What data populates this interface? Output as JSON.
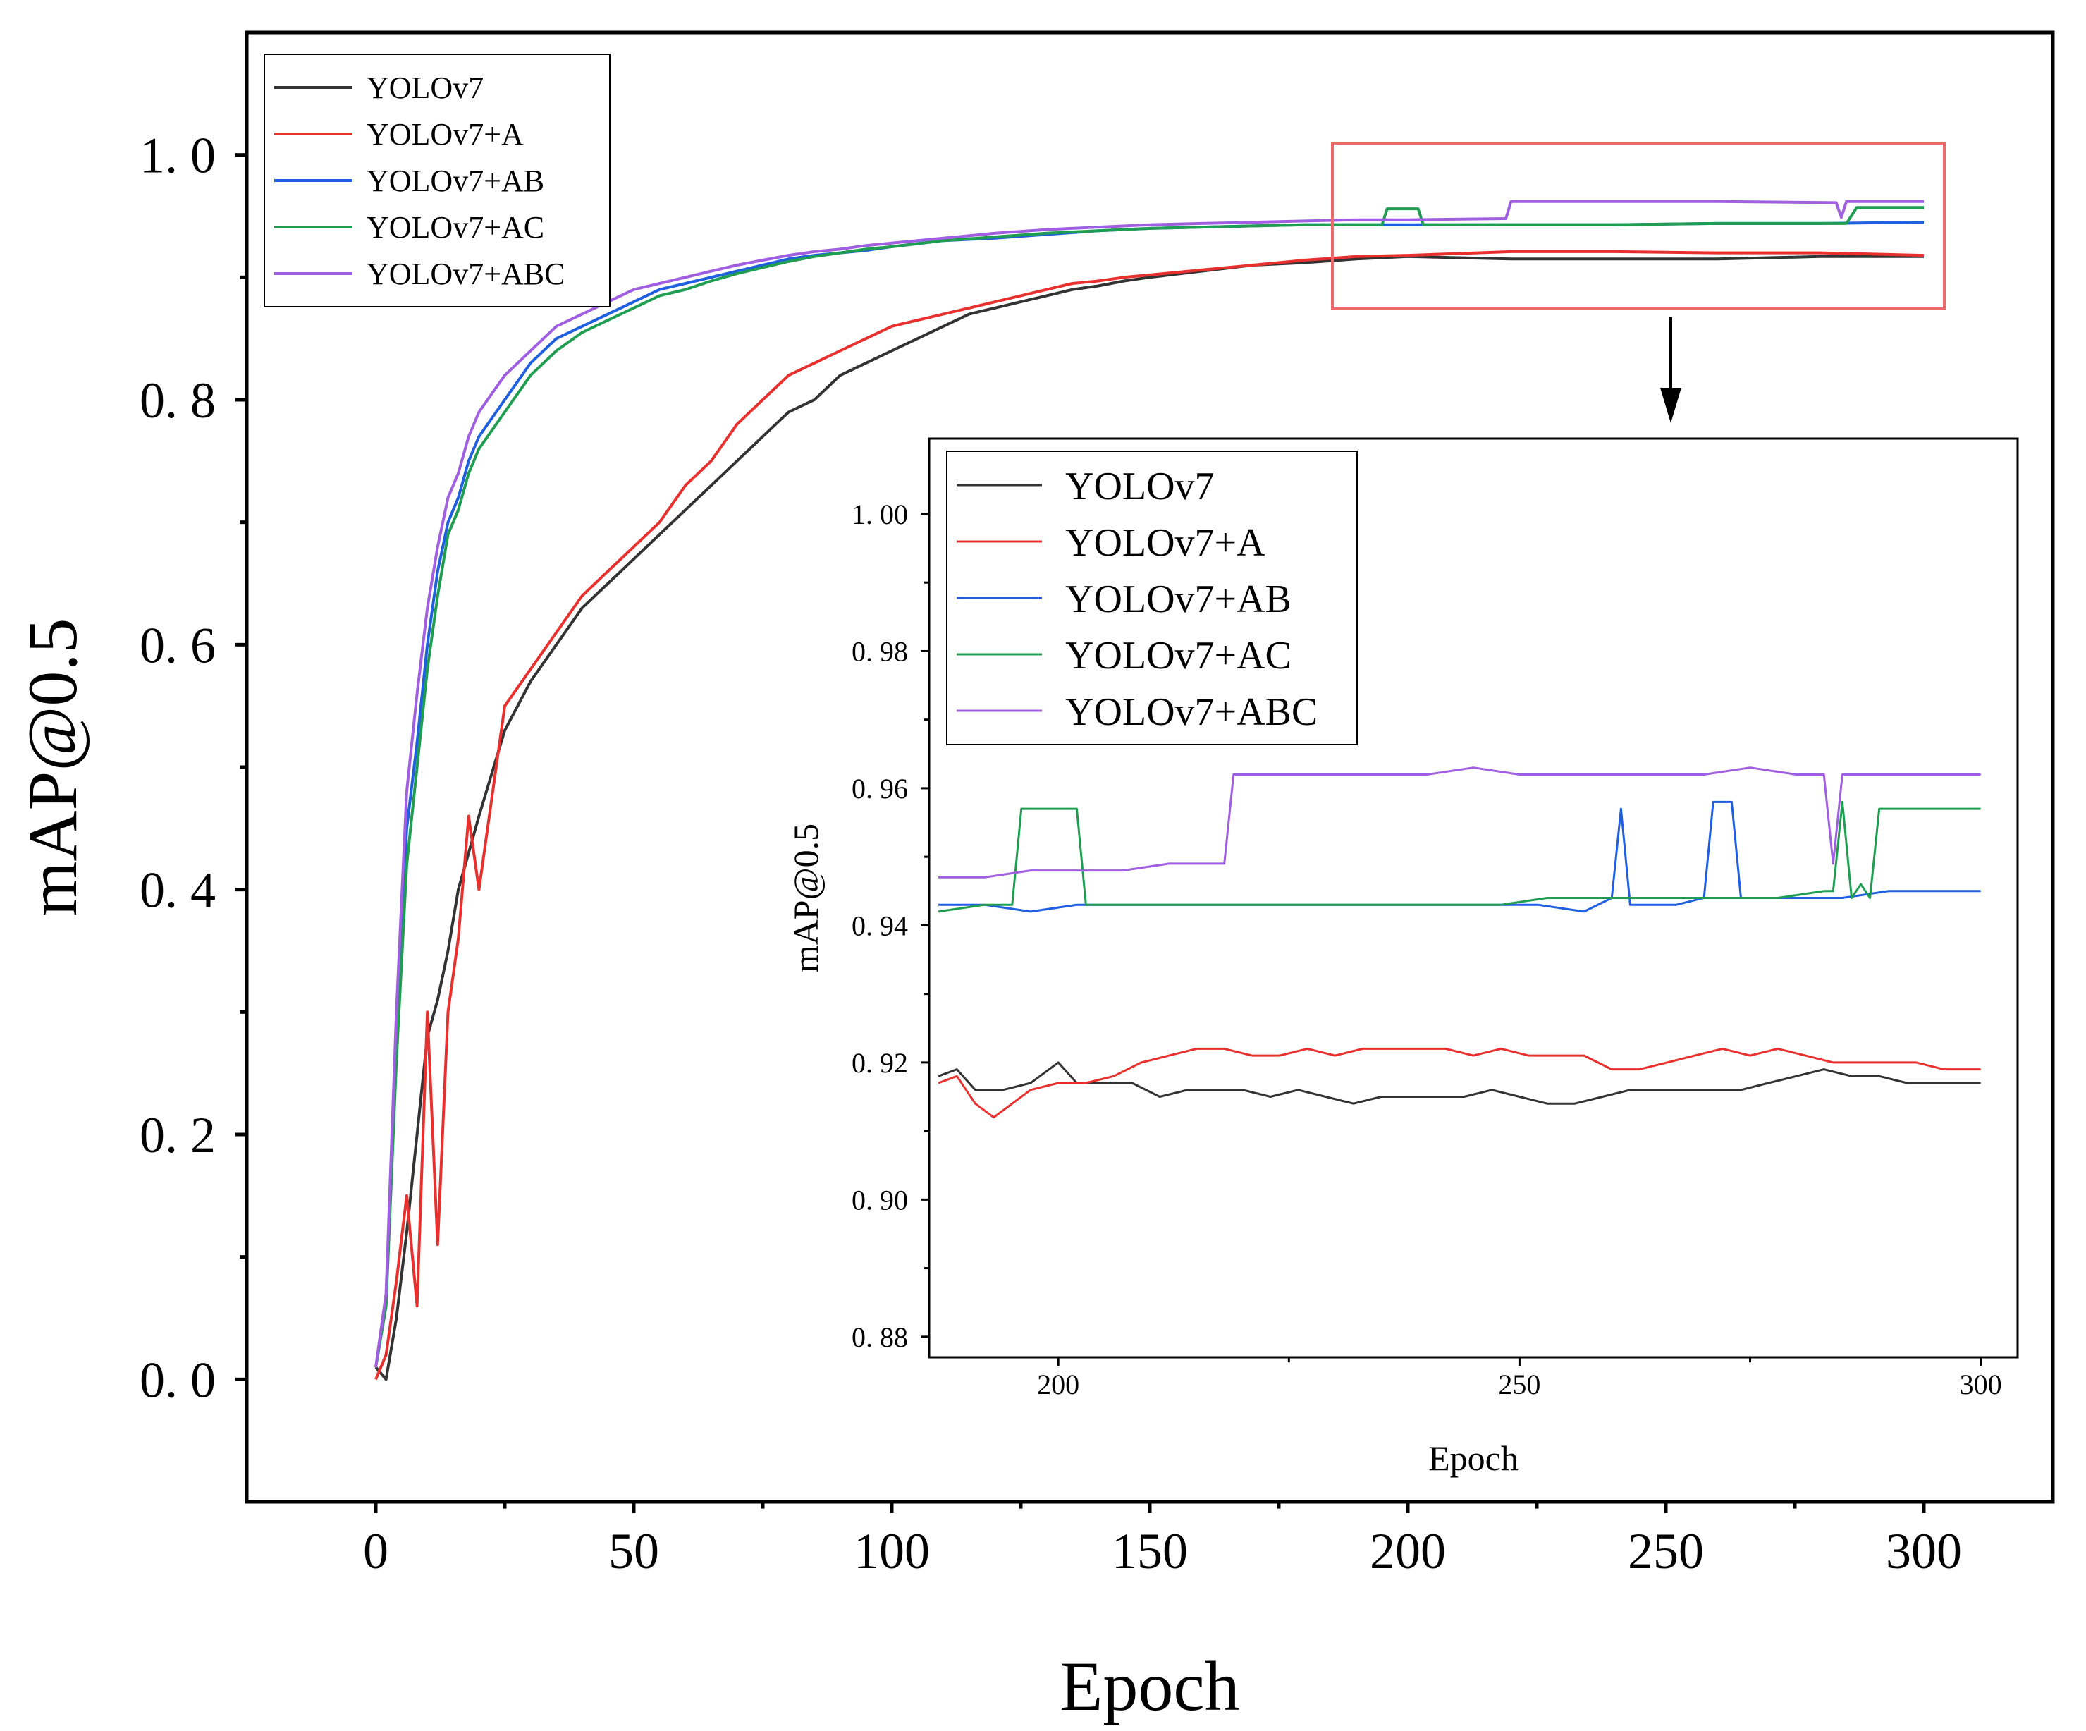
{
  "colors": {
    "YOLOv7": "#333333",
    "YOLOv7+A": "#e8312f",
    "YOLOv7+AB": "#1f5fe0",
    "YOLOv7+AC": "#1f9e52",
    "YOLOv7+ABC": "#a05fe0",
    "highlight": "#ee6a6a"
  },
  "chart_data": [
    {
      "type": "line",
      "id": "main",
      "title": "",
      "xlabel": "Epoch",
      "ylabel": "mAP@0.5",
      "xlim": [
        -25,
        325
      ],
      "ylim": [
        -0.1,
        1.1
      ],
      "xticks": [
        0,
        50,
        100,
        150,
        200,
        250,
        300
      ],
      "xtick_labels": [
        "0",
        "50",
        "100",
        "150",
        "200",
        "250",
        "300"
      ],
      "yticks": [
        0.0,
        0.2,
        0.4,
        0.6,
        0.8,
        1.0
      ],
      "ytick_labels": [
        "0. 0",
        "0. 2",
        "0. 4",
        "0. 6",
        "0. 8",
        "1. 0"
      ],
      "legend_position": "top-left",
      "series": [
        {
          "name": "YOLOv7",
          "x": [
            0,
            2,
            4,
            6,
            8,
            10,
            12,
            14,
            16,
            18,
            20,
            25,
            30,
            35,
            40,
            45,
            50,
            55,
            60,
            65,
            70,
            75,
            80,
            85,
            90,
            95,
            100,
            105,
            110,
            115,
            120,
            125,
            130,
            135,
            140,
            145,
            150,
            160,
            170,
            180,
            190,
            200,
            220,
            240,
            260,
            280,
            300
          ],
          "y": [
            0.01,
            0.0,
            0.05,
            0.12,
            0.2,
            0.28,
            0.31,
            0.35,
            0.4,
            0.43,
            0.46,
            0.53,
            0.57,
            0.6,
            0.63,
            0.65,
            0.67,
            0.69,
            0.71,
            0.73,
            0.75,
            0.77,
            0.79,
            0.8,
            0.82,
            0.83,
            0.84,
            0.85,
            0.86,
            0.87,
            0.875,
            0.88,
            0.885,
            0.89,
            0.893,
            0.897,
            0.9,
            0.905,
            0.91,
            0.912,
            0.915,
            0.917,
            0.915,
            0.915,
            0.915,
            0.917,
            0.917
          ]
        },
        {
          "name": "YOLOv7+A",
          "x": [
            0,
            2,
            4,
            6,
            8,
            10,
            12,
            14,
            16,
            18,
            20,
            25,
            30,
            35,
            40,
            45,
            50,
            55,
            60,
            65,
            70,
            75,
            80,
            85,
            90,
            95,
            100,
            105,
            110,
            115,
            120,
            125,
            130,
            135,
            140,
            145,
            150,
            160,
            170,
            180,
            190,
            200,
            220,
            240,
            260,
            280,
            300
          ],
          "y": [
            0.0,
            0.02,
            0.08,
            0.15,
            0.06,
            0.3,
            0.11,
            0.3,
            0.36,
            0.46,
            0.4,
            0.55,
            0.58,
            0.61,
            0.64,
            0.66,
            0.68,
            0.7,
            0.73,
            0.75,
            0.78,
            0.8,
            0.82,
            0.83,
            0.84,
            0.85,
            0.86,
            0.865,
            0.87,
            0.875,
            0.88,
            0.885,
            0.89,
            0.895,
            0.897,
            0.9,
            0.902,
            0.906,
            0.91,
            0.914,
            0.917,
            0.918,
            0.921,
            0.921,
            0.92,
            0.92,
            0.918
          ]
        },
        {
          "name": "YOLOv7+AB",
          "x": [
            0,
            2,
            4,
            6,
            8,
            10,
            12,
            14,
            16,
            18,
            20,
            25,
            30,
            35,
            40,
            45,
            50,
            55,
            60,
            65,
            70,
            75,
            80,
            85,
            90,
            95,
            100,
            110,
            120,
            130,
            140,
            150,
            160,
            170,
            180,
            190,
            200,
            220,
            240,
            260,
            280,
            300
          ],
          "y": [
            0.01,
            0.06,
            0.28,
            0.45,
            0.52,
            0.6,
            0.66,
            0.7,
            0.72,
            0.75,
            0.77,
            0.8,
            0.83,
            0.85,
            0.86,
            0.87,
            0.88,
            0.89,
            0.895,
            0.9,
            0.905,
            0.91,
            0.915,
            0.918,
            0.92,
            0.922,
            0.925,
            0.93,
            0.932,
            0.935,
            0.938,
            0.94,
            0.941,
            0.942,
            0.943,
            0.943,
            0.943,
            0.943,
            0.943,
            0.944,
            0.944,
            0.945
          ]
        },
        {
          "name": "YOLOv7+AC",
          "x": [
            0,
            2,
            4,
            6,
            8,
            10,
            12,
            14,
            16,
            18,
            20,
            25,
            30,
            35,
            40,
            45,
            50,
            55,
            60,
            65,
            70,
            75,
            80,
            85,
            90,
            95,
            100,
            110,
            120,
            130,
            140,
            150,
            160,
            170,
            180,
            190,
            195,
            196,
            202,
            203,
            220,
            240,
            260,
            285,
            287,
            300
          ],
          "y": [
            0.01,
            0.06,
            0.26,
            0.42,
            0.5,
            0.58,
            0.64,
            0.69,
            0.71,
            0.74,
            0.76,
            0.79,
            0.82,
            0.84,
            0.855,
            0.865,
            0.875,
            0.885,
            0.89,
            0.897,
            0.903,
            0.908,
            0.913,
            0.917,
            0.92,
            0.923,
            0.925,
            0.93,
            0.933,
            0.936,
            0.938,
            0.94,
            0.941,
            0.942,
            0.943,
            0.943,
            0.943,
            0.956,
            0.956,
            0.943,
            0.943,
            0.943,
            0.944,
            0.944,
            0.957,
            0.957
          ]
        },
        {
          "name": "YOLOv7+ABC",
          "x": [
            0,
            2,
            4,
            6,
            8,
            10,
            12,
            14,
            16,
            18,
            20,
            25,
            30,
            35,
            40,
            45,
            50,
            55,
            60,
            65,
            70,
            75,
            80,
            85,
            90,
            95,
            100,
            110,
            120,
            130,
            140,
            150,
            160,
            170,
            180,
            190,
            200,
            219,
            220,
            240,
            260,
            283,
            284,
            285,
            300
          ],
          "y": [
            0.01,
            0.07,
            0.3,
            0.48,
            0.56,
            0.63,
            0.68,
            0.72,
            0.74,
            0.77,
            0.79,
            0.82,
            0.84,
            0.86,
            0.87,
            0.88,
            0.89,
            0.895,
            0.9,
            0.905,
            0.91,
            0.914,
            0.918,
            0.921,
            0.923,
            0.926,
            0.928,
            0.932,
            0.936,
            0.939,
            0.941,
            0.943,
            0.944,
            0.945,
            0.946,
            0.947,
            0.947,
            0.948,
            0.962,
            0.962,
            0.962,
            0.961,
            0.949,
            0.962,
            0.962
          ]
        }
      ],
      "annotation": "highlight box around epochs ~187–300, mAP ~0.875–1.01 with arrow pointing to inset"
    },
    {
      "type": "line",
      "id": "inset",
      "title": "",
      "xlabel": "Epoch",
      "ylabel": "mAP@0.5",
      "xlim": [
        186,
        304
      ],
      "ylim": [
        0.877,
        1.011
      ],
      "xticks": [
        200,
        250,
        300
      ],
      "xtick_labels": [
        "200",
        "250",
        "300"
      ],
      "yticks": [
        0.88,
        0.9,
        0.92,
        0.94,
        0.96,
        0.98,
        1.0
      ],
      "ytick_labels": [
        "0. 88",
        "0. 90",
        "0. 92",
        "0. 94",
        "0. 96",
        "0. 98",
        "1. 00"
      ],
      "legend_position": "top-left",
      "series": [
        {
          "name": "YOLOv7",
          "x": [
            187,
            189,
            191,
            194,
            197,
            200,
            202,
            205,
            208,
            211,
            214,
            217,
            220,
            223,
            226,
            229,
            232,
            235,
            238,
            241,
            244,
            247,
            250,
            253,
            256,
            259,
            262,
            265,
            268,
            271,
            274,
            277,
            280,
            283,
            286,
            289,
            292,
            295,
            300
          ],
          "y": [
            0.918,
            0.919,
            0.916,
            0.916,
            0.917,
            0.92,
            0.917,
            0.917,
            0.917,
            0.915,
            0.916,
            0.916,
            0.916,
            0.915,
            0.916,
            0.915,
            0.914,
            0.915,
            0.915,
            0.915,
            0.915,
            0.916,
            0.915,
            0.914,
            0.914,
            0.915,
            0.916,
            0.916,
            0.916,
            0.916,
            0.916,
            0.917,
            0.918,
            0.919,
            0.918,
            0.918,
            0.917,
            0.917,
            0.917
          ]
        },
        {
          "name": "YOLOv7+A",
          "x": [
            187,
            189,
            191,
            193,
            195,
            197,
            200,
            203,
            206,
            209,
            212,
            215,
            218,
            221,
            224,
            227,
            230,
            233,
            236,
            239,
            242,
            245,
            248,
            251,
            254,
            257,
            260,
            263,
            266,
            269,
            272,
            275,
            278,
            281,
            284,
            287,
            290,
            293,
            296,
            300
          ],
          "y": [
            0.917,
            0.918,
            0.914,
            0.912,
            0.914,
            0.916,
            0.917,
            0.917,
            0.918,
            0.92,
            0.921,
            0.922,
            0.922,
            0.921,
            0.921,
            0.922,
            0.921,
            0.922,
            0.922,
            0.922,
            0.922,
            0.921,
            0.922,
            0.921,
            0.921,
            0.921,
            0.919,
            0.919,
            0.92,
            0.921,
            0.922,
            0.921,
            0.922,
            0.921,
            0.92,
            0.92,
            0.92,
            0.92,
            0.919,
            0.919
          ]
        },
        {
          "name": "YOLOv7+AB",
          "x": [
            187,
            192,
            197,
            202,
            207,
            212,
            217,
            222,
            227,
            232,
            237,
            242,
            247,
            252,
            257,
            260,
            261,
            262,
            267,
            270,
            271,
            273,
            274,
            280,
            285,
            290,
            295,
            300
          ],
          "y": [
            0.943,
            0.943,
            0.942,
            0.943,
            0.943,
            0.943,
            0.943,
            0.943,
            0.943,
            0.943,
            0.943,
            0.943,
            0.943,
            0.943,
            0.942,
            0.944,
            0.957,
            0.943,
            0.943,
            0.944,
            0.958,
            0.958,
            0.944,
            0.944,
            0.944,
            0.945,
            0.945,
            0.945
          ]
        },
        {
          "name": "YOLOv7+AC",
          "x": [
            187,
            192,
            195,
            196,
            202,
            203,
            208,
            213,
            218,
            223,
            228,
            233,
            238,
            243,
            248,
            253,
            258,
            263,
            268,
            273,
            278,
            283,
            284,
            285,
            286,
            287,
            288,
            289,
            295,
            300
          ],
          "y": [
            0.942,
            0.943,
            0.943,
            0.957,
            0.957,
            0.943,
            0.943,
            0.943,
            0.943,
            0.943,
            0.943,
            0.943,
            0.943,
            0.943,
            0.943,
            0.944,
            0.944,
            0.944,
            0.944,
            0.944,
            0.944,
            0.945,
            0.945,
            0.958,
            0.944,
            0.946,
            0.944,
            0.957,
            0.957,
            0.957
          ]
        },
        {
          "name": "YOLOv7+ABC",
          "x": [
            187,
            192,
            197,
            202,
            207,
            212,
            218,
            219,
            225,
            230,
            235,
            240,
            245,
            250,
            255,
            260,
            265,
            270,
            275,
            280,
            282,
            283,
            284,
            285,
            290,
            295,
            300
          ],
          "y": [
            0.947,
            0.947,
            0.948,
            0.948,
            0.948,
            0.949,
            0.949,
            0.962,
            0.962,
            0.962,
            0.962,
            0.962,
            0.963,
            0.962,
            0.962,
            0.962,
            0.962,
            0.962,
            0.963,
            0.962,
            0.962,
            0.962,
            0.949,
            0.962,
            0.962,
            0.962,
            0.962
          ]
        }
      ]
    }
  ]
}
